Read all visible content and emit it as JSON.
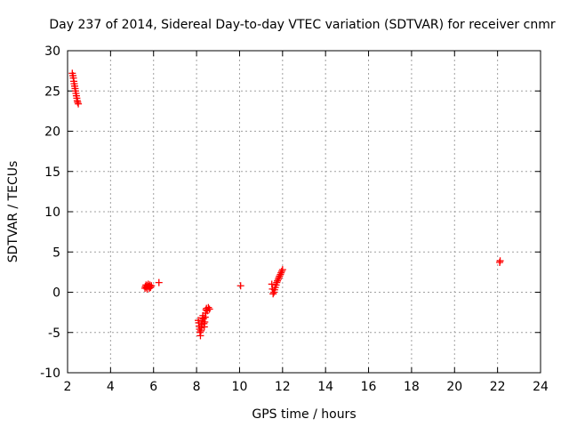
{
  "chart_data": {
    "type": "scatter",
    "title": "Day 237 of 2014, Sidereal Day-to-day VTEC variation (SDTVAR) for receiver cnmr",
    "xlabel": "GPS time / hours",
    "ylabel": "SDTVAR / TECUs",
    "xlim": [
      2,
      24
    ],
    "ylim": [
      -10,
      30
    ],
    "x_ticks": [
      2,
      4,
      6,
      8,
      10,
      12,
      14,
      16,
      18,
      20,
      22,
      24
    ],
    "y_ticks": [
      -10,
      -5,
      0,
      5,
      10,
      15,
      20,
      25,
      30
    ],
    "x_tick_labels": [
      "2",
      "4",
      "6",
      "8",
      "10",
      "12",
      "14",
      "16",
      "18",
      "20",
      "22",
      "24"
    ],
    "y_tick_labels": [
      "-10",
      "-5",
      "0",
      "5",
      "10",
      "15",
      "20",
      "25",
      "30"
    ],
    "grid": true,
    "marker": "plus",
    "color": "#ff0000",
    "series": [
      {
        "name": "SDTVAR",
        "x": [
          2.22,
          2.25,
          2.27,
          2.29,
          2.31,
          2.33,
          2.35,
          2.37,
          2.39,
          2.41,
          2.43,
          2.45,
          2.47,
          2.5,
          5.6,
          5.62,
          5.65,
          5.68,
          5.7,
          5.72,
          5.75,
          5.78,
          5.8,
          5.83,
          5.86,
          5.9,
          6.25,
          8.08,
          8.1,
          8.12,
          8.14,
          8.16,
          8.18,
          8.2,
          8.22,
          8.24,
          8.26,
          8.28,
          8.3,
          8.32,
          8.34,
          8.36,
          8.38,
          8.4,
          8.42,
          8.44,
          8.46,
          8.5,
          8.55,
          8.6,
          10.05,
          11.5,
          11.53,
          11.56,
          11.6,
          11.63,
          11.66,
          11.7,
          11.73,
          11.76,
          11.8,
          11.83,
          11.86,
          11.9,
          11.93,
          11.96,
          12.0,
          22.1,
          22.12
        ],
        "y": [
          27.2,
          26.9,
          26.6,
          26.2,
          25.9,
          25.6,
          25.3,
          25.0,
          24.7,
          24.4,
          24.1,
          23.8,
          23.6,
          23.4,
          0.5,
          0.7,
          0.9,
          0.6,
          0.4,
          0.8,
          1.0,
          0.7,
          0.5,
          0.9,
          0.6,
          0.8,
          1.2,
          -3.5,
          -3.8,
          -4.2,
          -4.6,
          -5.0,
          -5.4,
          -4.8,
          -4.4,
          -4.0,
          -3.6,
          -3.2,
          -2.9,
          -3.3,
          -3.9,
          -4.3,
          -3.7,
          -3.1,
          -2.6,
          -2.2,
          -2.0,
          -2.3,
          -1.9,
          -2.1,
          0.8,
          1.0,
          0.4,
          -0.2,
          0.0,
          0.3,
          0.6,
          0.9,
          1.2,
          1.4,
          1.6,
          1.8,
          2.0,
          2.2,
          2.4,
          2.6,
          2.8,
          3.7,
          3.9
        ]
      }
    ]
  }
}
